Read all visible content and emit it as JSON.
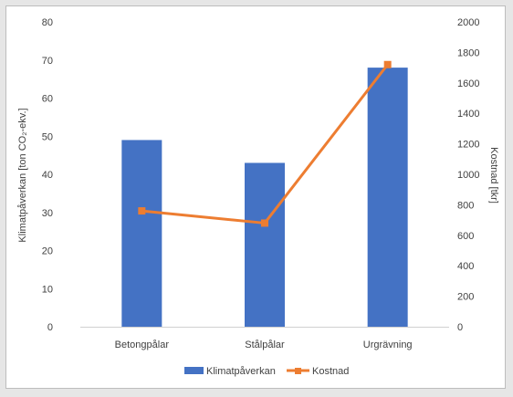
{
  "chart_data": {
    "type": "bar",
    "categories": [
      "Betongpålar",
      "Stålpålar",
      "Urgrävning"
    ],
    "series": [
      {
        "name": "Klimatpåverkan",
        "type": "bar",
        "axis": "left",
        "values": [
          49,
          43,
          68
        ],
        "color": "#4472C4"
      },
      {
        "name": "Kostnad",
        "type": "line",
        "axis": "right",
        "values": [
          760,
          680,
          1720
        ],
        "color": "#ED7D31"
      }
    ],
    "ylabel": "Klimatpåverkan [ton CO₂-ekv.]",
    "y2label": "Kostnad [tkr]",
    "ylim": [
      0,
      80
    ],
    "y2lim": [
      0,
      2000
    ],
    "yticks": [
      "0",
      "10",
      "20",
      "30",
      "40",
      "50",
      "60",
      "70",
      "80"
    ],
    "y2ticks": [
      "0",
      "200",
      "400",
      "600",
      "800",
      "1000",
      "1200",
      "1400",
      "1600",
      "1800",
      "2000"
    ],
    "grid": false,
    "legend_position": "bottom"
  },
  "colors": {
    "bar": "#4472C4",
    "line": "#ED7D31",
    "axis_line": "#d0d0d0",
    "text": "#404040"
  }
}
